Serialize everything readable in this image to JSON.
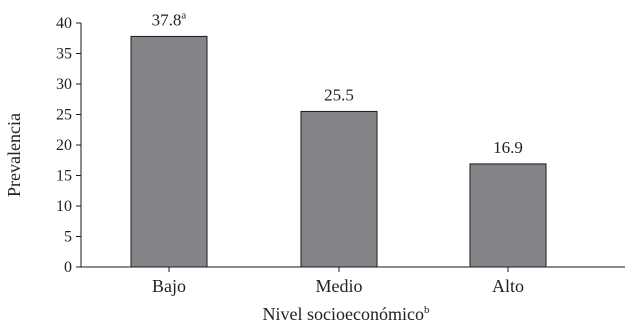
{
  "chart_data": {
    "type": "bar",
    "title": "",
    "categories": [
      "Bajo",
      "Medio",
      "Alto"
    ],
    "values": [
      37.8,
      25.5,
      16.9
    ],
    "data_labels": [
      "37.8",
      "25.5",
      "16.9"
    ],
    "data_label_superscripts": [
      "a",
      "",
      ""
    ],
    "xlabel": "Nivel socioeconómico",
    "xlabel_superscript": "b",
    "ylabel": "Prevalencia",
    "ylim": [
      0,
      40
    ],
    "yticks": [
      0,
      5,
      10,
      15,
      20,
      25,
      30,
      35,
      40
    ],
    "bar_color": "#858589",
    "bar_edge_color": "#1a1a1a",
    "axis_color": "#1a1a1a",
    "grid": false,
    "legend": "none"
  }
}
